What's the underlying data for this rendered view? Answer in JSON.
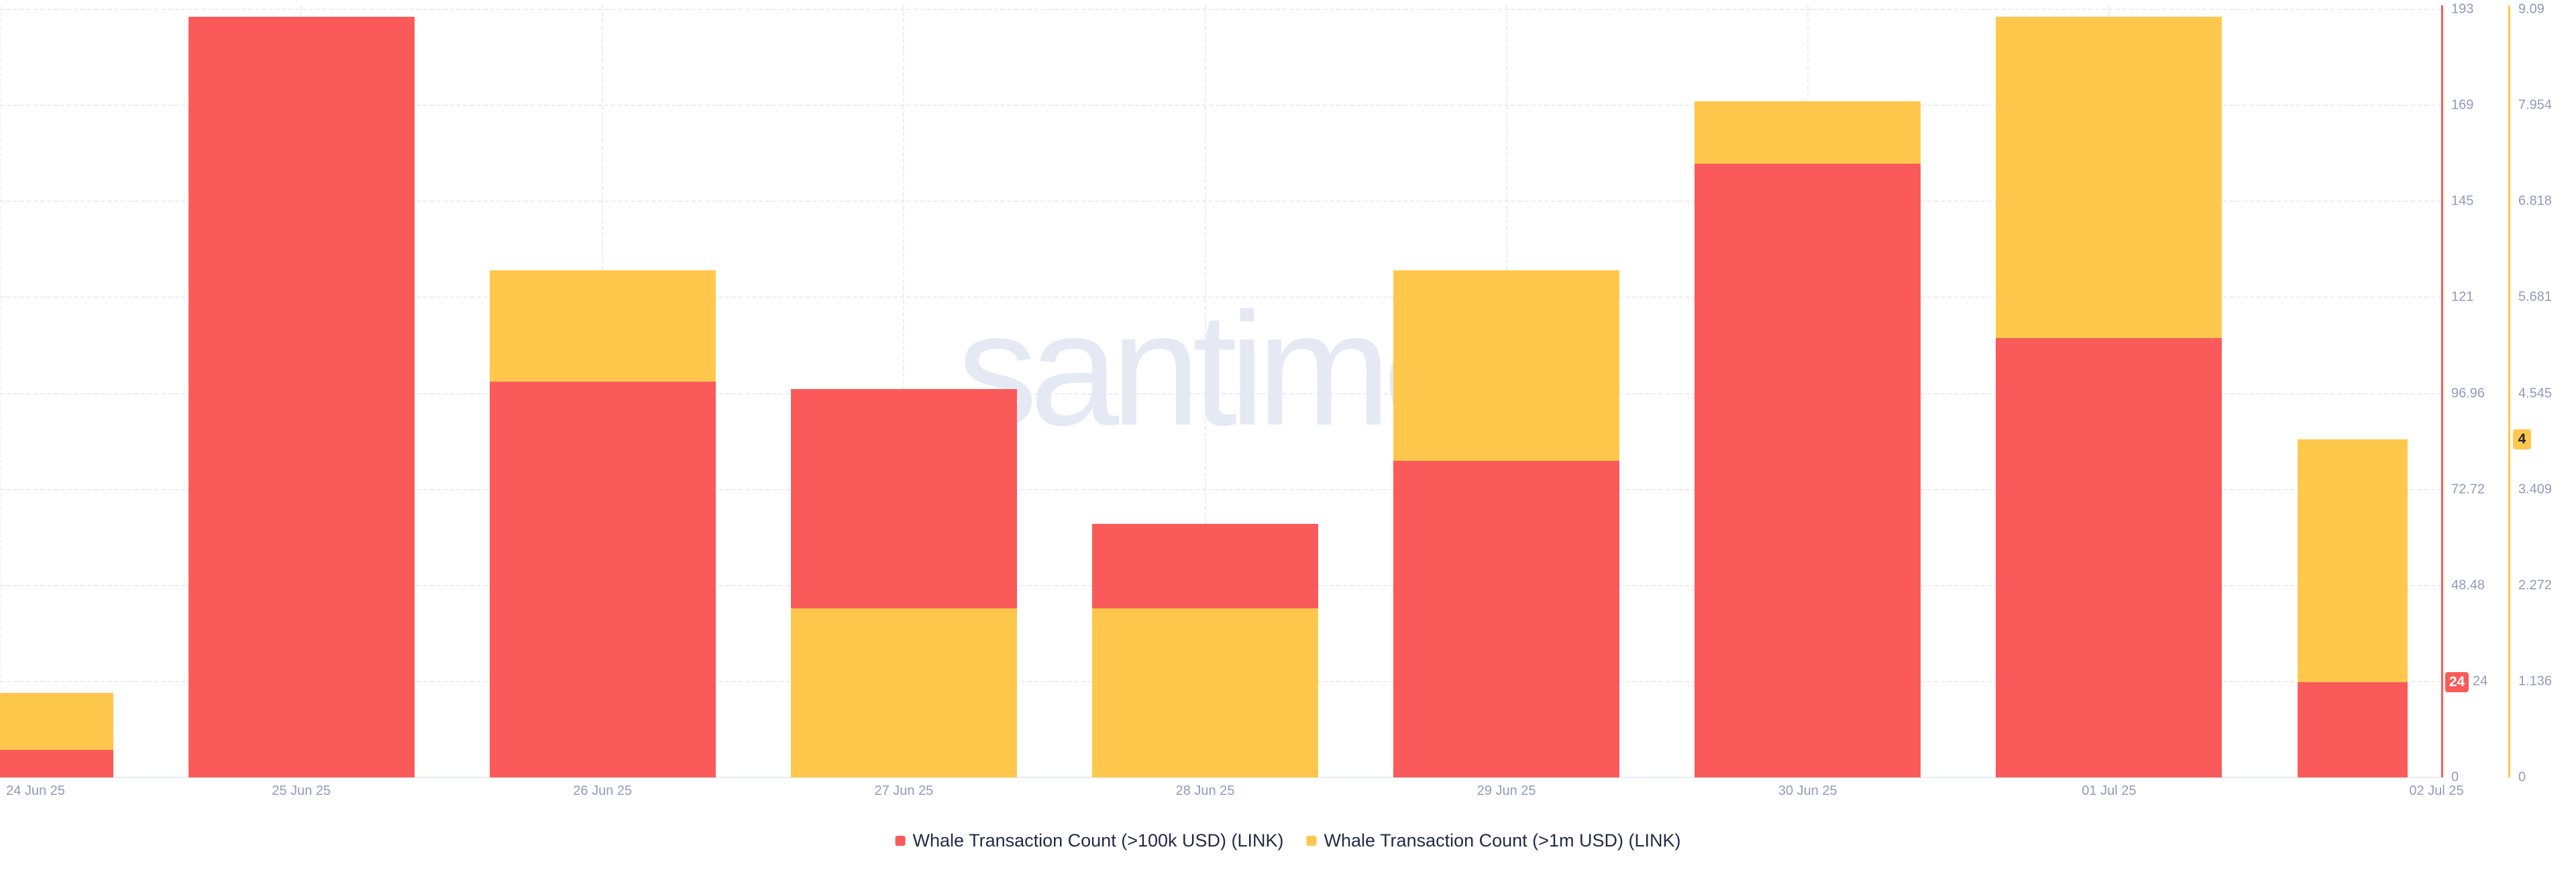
{
  "watermark": ".santiment",
  "colors": {
    "background": "#FFFFFF",
    "red": "#FB5A5A",
    "yellow": "#FFC84D",
    "grid": "#E9ECF4",
    "axis_label": "#8F9BB7",
    "legend_text": "#222B45",
    "watermark": "#E5E9F4",
    "badge_red_text": "#FFFFFF",
    "badge_yellow_text": "#1B2437"
  },
  "chart_data": {
    "type": "bar",
    "title": "",
    "categories": [
      "24 Jun 25",
      "25 Jun 25",
      "26 Jun 25",
      "27 Jun 25",
      "28 Jun 25",
      "29 Jun 25",
      "30 Jun 25",
      "01 Jul 25",
      "02 Jul 25"
    ],
    "series": [
      {
        "name": "Whale Transaction Count (>100k USD) (LINK)",
        "color": "#FB5A5A",
        "axis": "red",
        "values": [
          7,
          192,
          100,
          98,
          64,
          80,
          155,
          111,
          24
        ],
        "last_value_badge": "24"
      },
      {
        "name": "Whale Transaction Count (>1m USD) (LINK)",
        "color": "#FFC84D",
        "axis": "yellow",
        "values": [
          1,
          0,
          6,
          2,
          2,
          6,
          8,
          9,
          4
        ],
        "last_value_badge": "4"
      }
    ],
    "red_axis": {
      "side": "right-inner",
      "ticks_top_to_bottom": [
        "193",
        "169",
        "145",
        "121",
        "96.96",
        "72.72",
        "48.48",
        "24",
        "0"
      ],
      "min": 0,
      "max": 193.92
    },
    "yellow_axis": {
      "side": "right-outer",
      "ticks_top_to_bottom": [
        "9.09",
        "7.954",
        "6.818",
        "5.681",
        "4.545",
        "3.409",
        "2.272",
        "1.136",
        "0"
      ],
      "min": 0,
      "max": 9.088
    },
    "legend_position": "bottom-center",
    "grid": "dashed",
    "bar_overlap_note": "two overlapping series (not stacked); shorter bar drawn in front"
  },
  "legend": {
    "items": [
      {
        "label": "Whale Transaction Count (>100k USD) (LINK)",
        "color": "#FB5A5A"
      },
      {
        "label": "Whale Transaction Count (>1m USD) (LINK)",
        "color": "#FFC84D"
      }
    ]
  },
  "badges": {
    "red_last": "24",
    "red_last_axis_label": "24",
    "yellow_last": "4"
  }
}
